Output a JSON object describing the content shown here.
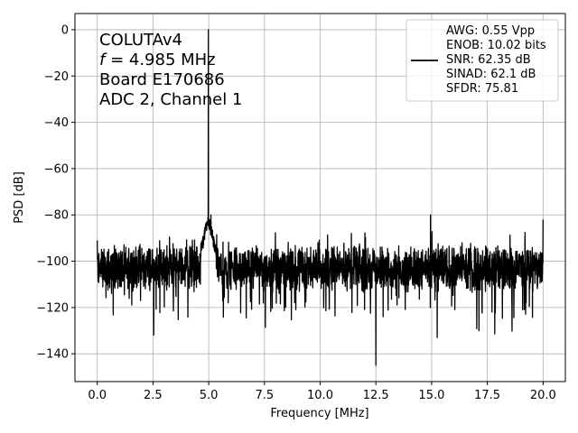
{
  "chart_data": {
    "type": "line",
    "xlabel": "Frequency [MHz]",
    "ylabel": "PSD [dB]",
    "xlim": [
      -1,
      21
    ],
    "ylim": [
      -152,
      7
    ],
    "xticks": [
      0.0,
      2.5,
      5.0,
      7.5,
      10.0,
      12.5,
      15.0,
      17.5,
      20.0
    ],
    "xtick_labels": [
      "0.0",
      "2.5",
      "5.0",
      "7.5",
      "10.0",
      "12.5",
      "15.0",
      "17.5",
      "20.0"
    ],
    "yticks": [
      0,
      -20,
      -40,
      -60,
      -80,
      -100,
      -120,
      -140
    ],
    "ytick_labels": [
      "0",
      "−20",
      "−40",
      "−60",
      "−80",
      "−100",
      "−120",
      "−140"
    ],
    "grid": true,
    "legend_position": "top-right",
    "annotation_lines": [
      {
        "prefix": "",
        "italic": "",
        "rest": "COLUTAv4"
      },
      {
        "prefix": "",
        "italic": "f",
        "rest": " = 4.985 MHz"
      },
      {
        "prefix": "",
        "italic": "",
        "rest": "Board E170686"
      },
      {
        "prefix": "",
        "italic": "",
        "rest": "ADC 2, Channel 1"
      }
    ],
    "legend_lines": [
      "AWG: 0.55 Vpp",
      "ENOB: 10.02 bits",
      "SNR: 62.35 dB",
      "SINAD: 62.1 dB",
      "SFDR: 75.81"
    ],
    "series": [
      {
        "color": "#000000",
        "noise_floor_db": -103,
        "x_range": [
          0,
          20
        ],
        "peaks": [
          {
            "x": 0.0,
            "y": -91
          },
          {
            "x": 4.985,
            "y": 0
          },
          {
            "x": 5.1,
            "y": -80
          },
          {
            "x": 9.9,
            "y": -92
          },
          {
            "x": 12.5,
            "y": -145
          },
          {
            "x": 14.95,
            "y": -80
          },
          {
            "x": 15.25,
            "y": -133
          },
          {
            "x": 20.0,
            "y": -82
          }
        ]
      }
    ]
  }
}
